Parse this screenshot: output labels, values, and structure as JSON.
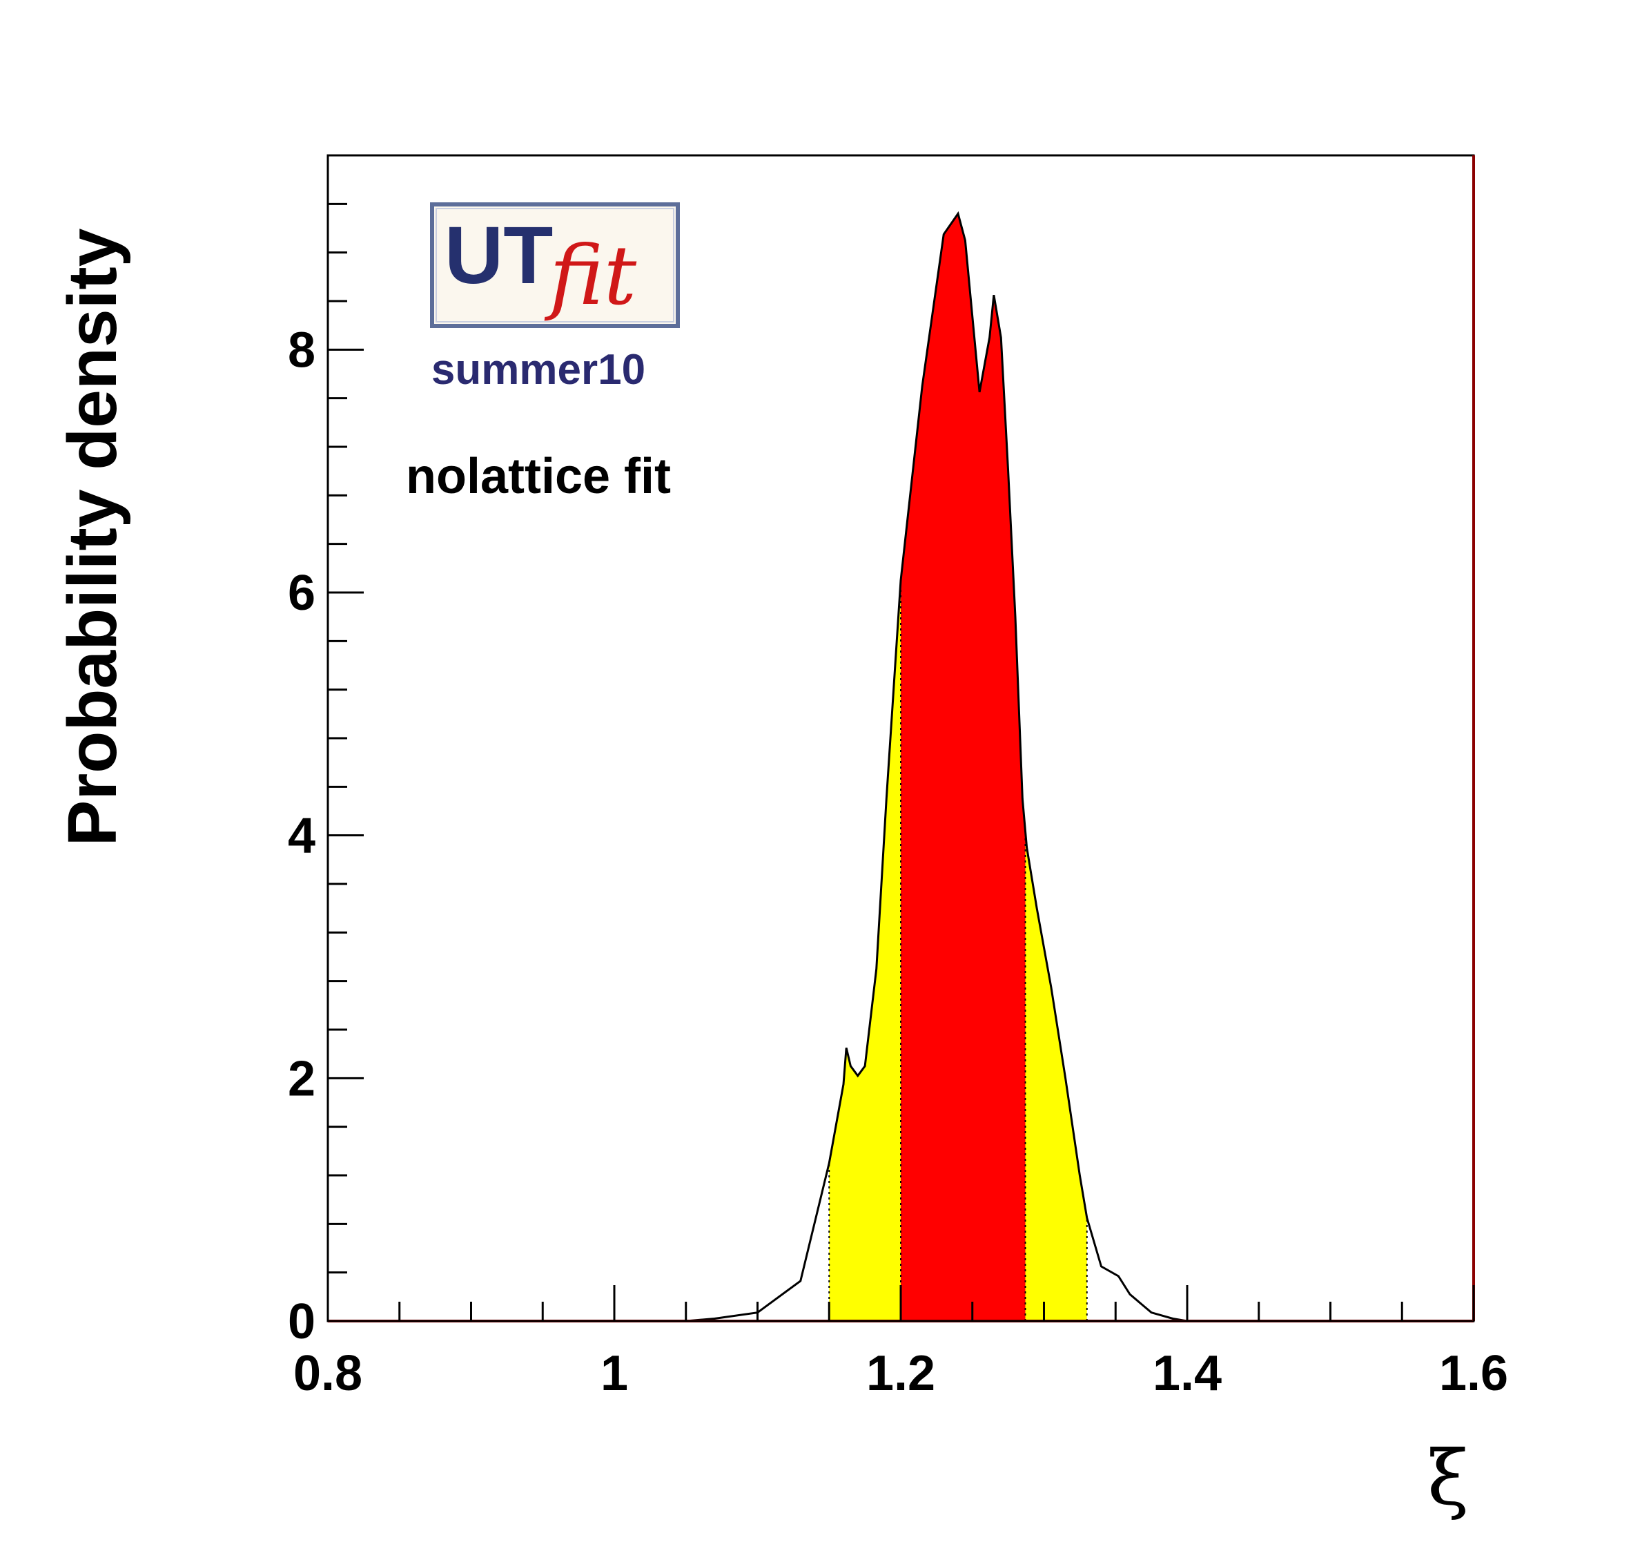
{
  "chart_data": {
    "type": "area",
    "xlabel": "ξ",
    "ylabel": "Probability density",
    "xlim": [
      0.8,
      1.6
    ],
    "ylim": [
      0,
      9.6
    ],
    "x_ticks": [
      0.8,
      1.0,
      1.2,
      1.4,
      1.6
    ],
    "x_tick_labels": [
      "0.8",
      "1",
      "1.2",
      "1.4",
      "1.6"
    ],
    "y_ticks": [
      0,
      2,
      4,
      6,
      8
    ],
    "y_tick_labels": [
      "0",
      "2",
      "4",
      "6",
      "8"
    ],
    "x": [
      0.8,
      1.05,
      1.07,
      1.1,
      1.13,
      1.15,
      1.16,
      1.162,
      1.165,
      1.17,
      1.175,
      1.183,
      1.19,
      1.2,
      1.215,
      1.23,
      1.24,
      1.245,
      1.255,
      1.262,
      1.265,
      1.27,
      1.275,
      1.28,
      1.285,
      1.288,
      1.295,
      1.305,
      1.315,
      1.325,
      1.33,
      1.34,
      1.352,
      1.36,
      1.375,
      1.39,
      1.4,
      1.6
    ],
    "y": [
      0,
      0,
      0.02,
      0.07,
      0.33,
      1.3,
      1.95,
      2.25,
      2.1,
      2.02,
      2.1,
      2.9,
      4.3,
      6.1,
      7.7,
      8.95,
      9.12,
      8.9,
      7.65,
      8.1,
      8.45,
      8.1,
      7.0,
      5.8,
      4.3,
      3.9,
      3.4,
      2.75,
      2.0,
      1.2,
      0.85,
      0.45,
      0.37,
      0.22,
      0.07,
      0.02,
      0,
      0
    ],
    "intervals": [
      {
        "range": [
          1.15,
          1.2
        ],
        "color": "#ffff00"
      },
      {
        "range": [
          1.2,
          1.287
        ],
        "color": "#ff0000"
      },
      {
        "range": [
          1.287,
          1.33
        ],
        "color": "#ffff00"
      }
    ],
    "colors": {
      "line": "#000000",
      "frame": "#000000",
      "frame_right": "#8b0000",
      "baseline": "#cc0000"
    },
    "annotations": [
      "summer10",
      "nolattice fit"
    ],
    "logo": {
      "text_main": "UT",
      "text_sub": "fit"
    },
    "grid": false,
    "legend": "none"
  }
}
